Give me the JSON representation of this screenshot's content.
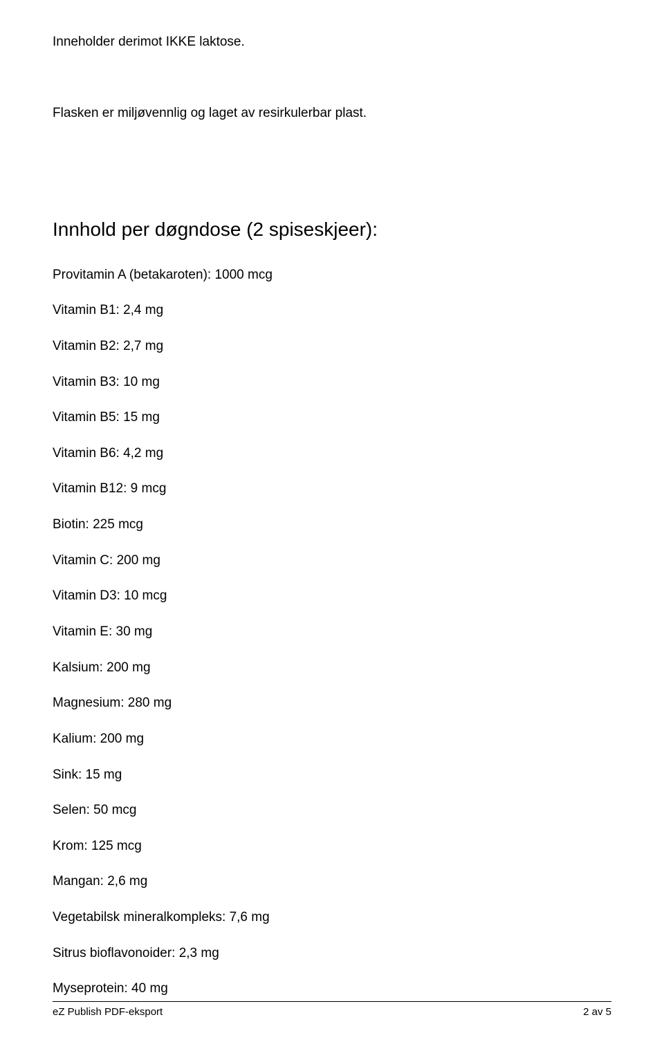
{
  "intro": {
    "line1": "Inneholder derimot IKKE laktose.",
    "nbsp1": " ",
    "line2": "Flasken er miljøvennlig og laget av resirkulerbar plast.",
    "nbsp2": " ",
    "nbsp3": " "
  },
  "heading": "Innhold per døgndose (2 spiseskjeer):",
  "items": [
    "Provitamin A (betakaroten): 1000 mcg",
    "Vitamin B1: 2,4 mg",
    "Vitamin B2: 2,7 mg",
    "Vitamin B3: 10 mg",
    "Vitamin B5: 15 mg",
    "Vitamin B6: 4,2 mg",
    "Vitamin B12: 9 mcg",
    "Biotin: 225 mcg",
    "Vitamin C: 200 mg",
    "Vitamin D3: 10 mcg",
    "Vitamin E: 30 mg",
    "Kalsium: 200 mg",
    "Magnesium: 280 mg",
    "Kalium: 200 mg",
    "Sink: 15 mg",
    "Selen: 50 mcg",
    "Krom: 125 mcg",
    "Mangan: 2,6 mg",
    "Vegetabilsk mineralkompleks: 7,6 mg",
    "Sitrus bioflavonoider: 2,3 mg",
    "Myseprotein: 40 mg"
  ],
  "footer": {
    "left": "eZ Publish PDF-eksport",
    "right": "2 av 5"
  }
}
